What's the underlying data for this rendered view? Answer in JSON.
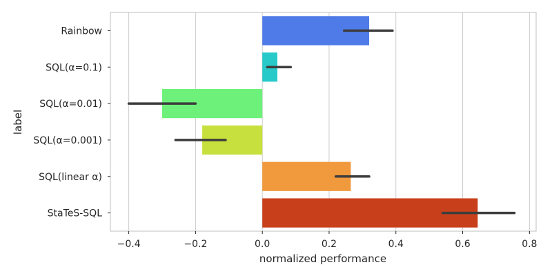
{
  "chart_data": {
    "type": "bar",
    "orientation": "horizontal",
    "title": "",
    "xlabel": "normalized performance",
    "ylabel": "label",
    "xlim": [
      -0.455,
      0.82
    ],
    "xticks": [
      -0.4,
      -0.2,
      0.0,
      0.2,
      0.4,
      0.6,
      0.8
    ],
    "xtick_labels": [
      "−0.4",
      "−0.2",
      "0.0",
      "0.2",
      "0.4",
      "0.6",
      "0.8"
    ],
    "grid": "vertical",
    "categories": [
      "Rainbow",
      "SQL(α=0.1)",
      "SQL(α=0.01)",
      "SQL(α=0.001)",
      "SQL(linear α)",
      "StaTeS-SQL"
    ],
    "values": [
      0.32,
      0.045,
      -0.3,
      -0.18,
      0.265,
      0.645
    ],
    "ci": [
      [
        0.245,
        0.39
      ],
      [
        0.015,
        0.085
      ],
      [
        -0.4,
        -0.2
      ],
      [
        -0.26,
        -0.11
      ],
      [
        0.22,
        0.32
      ],
      [
        0.54,
        0.755
      ]
    ],
    "colors": [
      "#4f7be8",
      "#27c9c9",
      "#6df17a",
      "#c8e03d",
      "#f19a3d",
      "#c8401b"
    ],
    "error_bar_color": "#3d3d3d"
  }
}
